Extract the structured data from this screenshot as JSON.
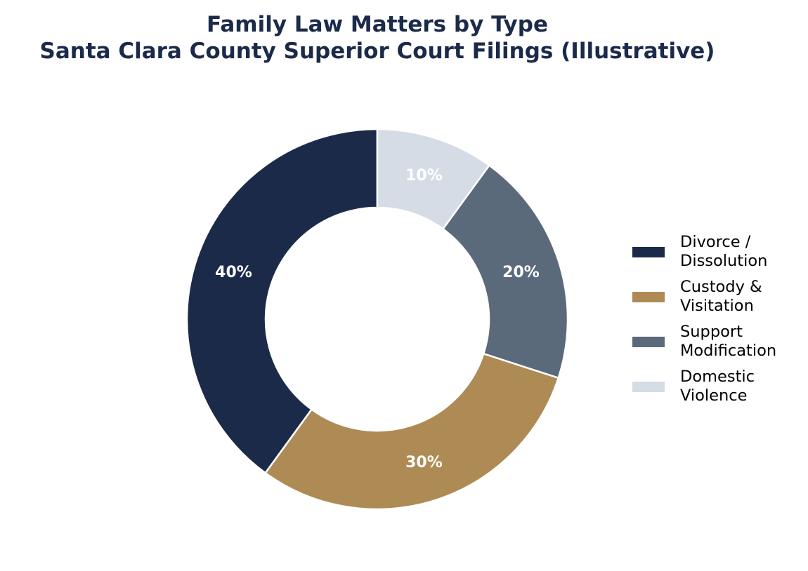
{
  "chart_data": {
    "type": "pie",
    "variant": "donut",
    "title": "Family Law Matters by Type",
    "subtitle": "Santa Clara County Superior Court Filings (Illustrative)",
    "categories": [
      "Divorce / Dissolution",
      "Custody & Visitation",
      "Support Modification",
      "Domestic Violence"
    ],
    "values": [
      40,
      30,
      20,
      10
    ],
    "value_labels": [
      "40%",
      "30%",
      "20%",
      "10%"
    ],
    "colors": [
      "#1c2a4a",
      "#ae8b55",
      "#5b6a7b",
      "#d6dce6"
    ],
    "start_angle": "top",
    "direction": "counterclockwise",
    "legend_position": "right"
  }
}
